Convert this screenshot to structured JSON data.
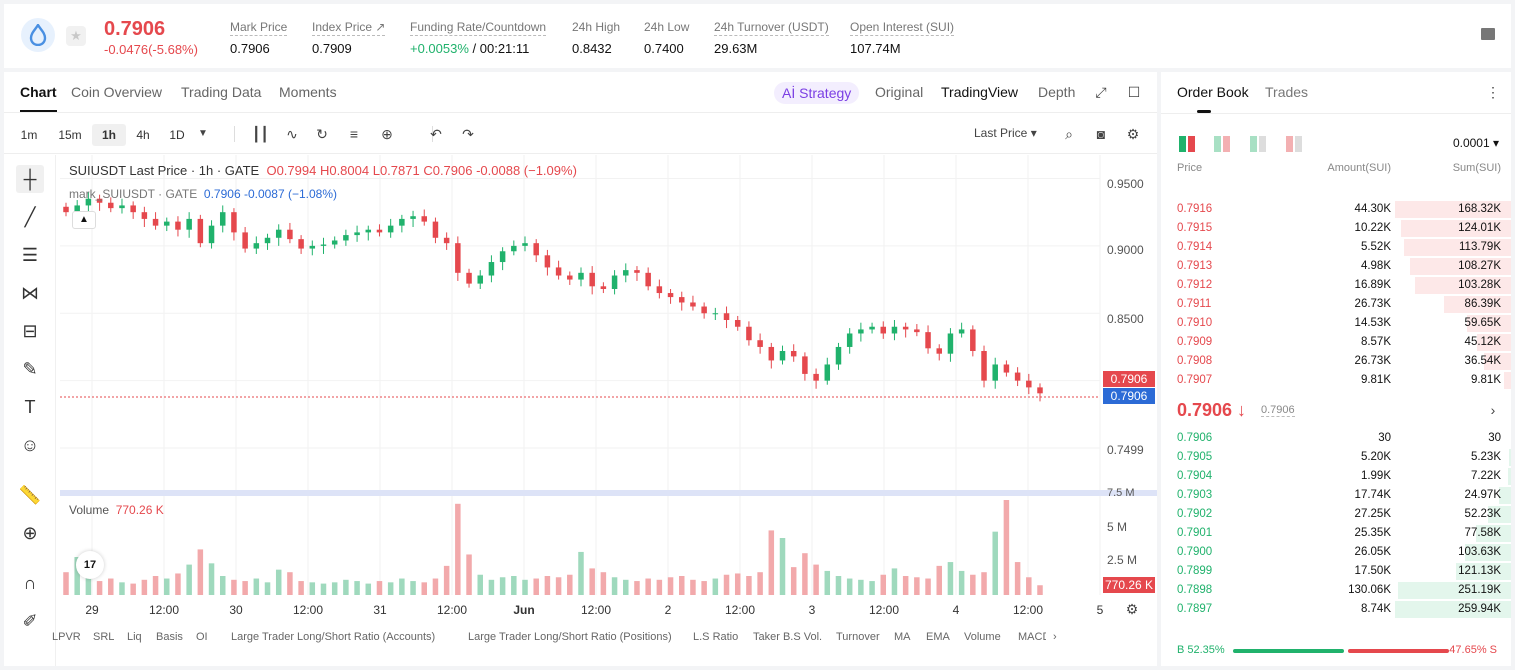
{
  "header": {
    "price": "0.7906",
    "change": "-0.0476(-5.68%)",
    "stats": [
      {
        "label": "Mark Price",
        "value": "0.7906"
      },
      {
        "label": "Index Price ↗",
        "value": "0.7909"
      },
      {
        "label": "Funding Rate/Countdown",
        "value_green": "+0.0053%",
        "value": " / 00:21:11"
      },
      {
        "label": "24h High",
        "value": "0.8432"
      },
      {
        "label": "24h Low",
        "value": "0.7400"
      },
      {
        "label": "24h Turnover (USDT)",
        "value": "29.63M"
      },
      {
        "label": "Open Interest (SUI)",
        "value": "107.74M"
      }
    ]
  },
  "chart_tabs": [
    "Chart",
    "Coin Overview",
    "Trading Data",
    "Moments"
  ],
  "view_tabs": {
    "strategy": "Strategy",
    "original": "Original",
    "tradingview": "TradingView",
    "depth": "Depth"
  },
  "intervals": [
    "1m",
    "15m",
    "1h",
    "4h",
    "1D"
  ],
  "last_price_label": "Last Price",
  "legend": {
    "title": "SUIUSDT Last Price · 1h · GATE",
    "ohlc": "O0.7994  H0.8004  L0.7871  C0.7906  -0.0088 (−1.09%)",
    "mark_label": "mark_SUIUSDT · GATE",
    "mark_values": "0.7906  -0.0087 (−1.08%)"
  },
  "volume_label": "Volume",
  "volume_value": "770.26 K",
  "price_axis": [
    "0.9500",
    "0.9000",
    "0.8500",
    "0.7499"
  ],
  "volume_axis": [
    "7.5 M",
    "5 M",
    "2.5 M"
  ],
  "price_tag_red": "0.7906",
  "price_tag_blue": "0.7906",
  "volume_tag": "770.26 K",
  "time_axis": [
    "29",
    "12:00",
    "30",
    "12:00",
    "31",
    "12:00",
    "Jun",
    "12:00",
    "2",
    "12:00",
    "3",
    "12:00",
    "4",
    "12:00",
    "5"
  ],
  "indicators": [
    "LPVR",
    "SRL",
    "Liq",
    "Basis",
    "OI",
    "Large Trader Long/Short Ratio (Accounts)",
    "Large Trader Long/Short Ratio (Positions)",
    "L.S Ratio",
    "Taker B.S Vol.",
    "Turnover",
    "MA",
    "EMA",
    "Volume",
    "MACD"
  ],
  "tv_logo": "17",
  "colors": {
    "up": "#20b26c",
    "down": "#e5484d",
    "accent": "#7b3fe4",
    "mark": "#2c6bd6"
  },
  "chart_data": {
    "type": "candlestick",
    "symbol": "SUIUSDT",
    "interval": "1h",
    "ylim": [
      0.73,
      0.96
    ],
    "x_ticks": [
      "29",
      "12:00",
      "30",
      "12:00",
      "31",
      "12:00",
      "Jun",
      "12:00",
      "2",
      "12:00",
      "3",
      "12:00",
      "4",
      "12:00",
      "5"
    ],
    "close_series": [
      0.925,
      0.93,
      0.935,
      0.932,
      0.928,
      0.93,
      0.925,
      0.92,
      0.915,
      0.918,
      0.912,
      0.92,
      0.902,
      0.915,
      0.925,
      0.91,
      0.898,
      0.902,
      0.906,
      0.912,
      0.905,
      0.898,
      0.9,
      0.901,
      0.904,
      0.908,
      0.91,
      0.912,
      0.91,
      0.915,
      0.92,
      0.922,
      0.918,
      0.906,
      0.902,
      0.88,
      0.872,
      0.878,
      0.888,
      0.896,
      0.9,
      0.902,
      0.893,
      0.884,
      0.878,
      0.875,
      0.88,
      0.87,
      0.868,
      0.878,
      0.882,
      0.88,
      0.87,
      0.865,
      0.862,
      0.858,
      0.855,
      0.85,
      0.85,
      0.845,
      0.84,
      0.83,
      0.825,
      0.815,
      0.822,
      0.818,
      0.805,
      0.8,
      0.812,
      0.825,
      0.835,
      0.838,
      0.84,
      0.835,
      0.84,
      0.838,
      0.836,
      0.824,
      0.82,
      0.835,
      0.838,
      0.822,
      0.8,
      0.812,
      0.806,
      0.8,
      0.795,
      0.7906
    ],
    "volume_ylim": [
      0,
      7500000
    ],
    "volume_series": [
      1800000,
      3000000,
      1400000,
      1100000,
      1300000,
      1000000,
      900000,
      1200000,
      1500000,
      1300000,
      1700000,
      2400000,
      3600000,
      2500000,
      1500000,
      1200000,
      1100000,
      1300000,
      1000000,
      2000000,
      1800000,
      1100000,
      1000000,
      900000,
      1000000,
      1200000,
      1100000,
      900000,
      1100000,
      1000000,
      1300000,
      1100000,
      1000000,
      1300000,
      2300000,
      7200000,
      3200000,
      1600000,
      1200000,
      1400000,
      1500000,
      1200000,
      1300000,
      1500000,
      1400000,
      1600000,
      3400000,
      2100000,
      1800000,
      1400000,
      1200000,
      1100000,
      1300000,
      1200000,
      1400000,
      1500000,
      1200000,
      1100000,
      1300000,
      1600000,
      1700000,
      1500000,
      1800000,
      5100000,
      4500000,
      2200000,
      3300000,
      2400000,
      1900000,
      1500000,
      1300000,
      1200000,
      1100000,
      1600000,
      2100000,
      1500000,
      1400000,
      1300000,
      2300000,
      2600000,
      1900000,
      1600000,
      1800000,
      5000000,
      7500000,
      2600000,
      1400000,
      770260
    ],
    "last_price": 0.7906,
    "last_volume": 770260
  },
  "book_tabs": [
    "Order Book",
    "Trades"
  ],
  "precision": "0.0001",
  "book_headers": {
    "price": "Price",
    "amount": "Amount(SUI)",
    "sum": "Sum(SUI)"
  },
  "asks": [
    {
      "price": "0.7916",
      "amount": "44.30K",
      "sum": "168.32K",
      "depth": 1.0
    },
    {
      "price": "0.7915",
      "amount": "10.22K",
      "sum": "124.01K",
      "depth": 0.95
    },
    {
      "price": "0.7914",
      "amount": "5.52K",
      "sum": "113.79K",
      "depth": 0.92
    },
    {
      "price": "0.7913",
      "amount": "4.98K",
      "sum": "108.27K",
      "depth": 0.87
    },
    {
      "price": "0.7912",
      "amount": "16.89K",
      "sum": "103.28K",
      "depth": 0.83
    },
    {
      "price": "0.7911",
      "amount": "26.73K",
      "sum": "86.39K",
      "depth": 0.58
    },
    {
      "price": "0.7910",
      "amount": "14.53K",
      "sum": "59.65K",
      "depth": 0.38
    },
    {
      "price": "0.7909",
      "amount": "8.57K",
      "sum": "45.12K",
      "depth": 0.29
    },
    {
      "price": "0.7908",
      "amount": "26.73K",
      "sum": "36.54K",
      "depth": 0.23
    },
    {
      "price": "0.7907",
      "amount": "9.81K",
      "sum": "9.81K",
      "depth": 0.06
    }
  ],
  "mid": {
    "price": "0.7906 ↓",
    "mark": "0.7906"
  },
  "bids": [
    {
      "price": "0.7906",
      "amount": "30",
      "sum": "30",
      "depth": 0.0
    },
    {
      "price": "0.7905",
      "amount": "5.20K",
      "sum": "5.23K",
      "depth": 0.02
    },
    {
      "price": "0.7904",
      "amount": "1.99K",
      "sum": "7.22K",
      "depth": 0.03
    },
    {
      "price": "0.7903",
      "amount": "17.74K",
      "sum": "24.97K",
      "depth": 0.1
    },
    {
      "price": "0.7902",
      "amount": "27.25K",
      "sum": "52.23K",
      "depth": 0.2
    },
    {
      "price": "0.7901",
      "amount": "25.35K",
      "sum": "77.58K",
      "depth": 0.3
    },
    {
      "price": "0.7900",
      "amount": "26.05K",
      "sum": "103.63K",
      "depth": 0.4
    },
    {
      "price": "0.7899",
      "amount": "17.50K",
      "sum": "121.13K",
      "depth": 0.47
    },
    {
      "price": "0.7898",
      "amount": "130.06K",
      "sum": "251.19K",
      "depth": 0.97
    },
    {
      "price": "0.7897",
      "amount": "8.74K",
      "sum": "259.94K",
      "depth": 1.0
    }
  ],
  "ratio": {
    "buy": "B 52.35%",
    "sell": "47.65% S",
    "buy_fraction": 0.5235
  }
}
